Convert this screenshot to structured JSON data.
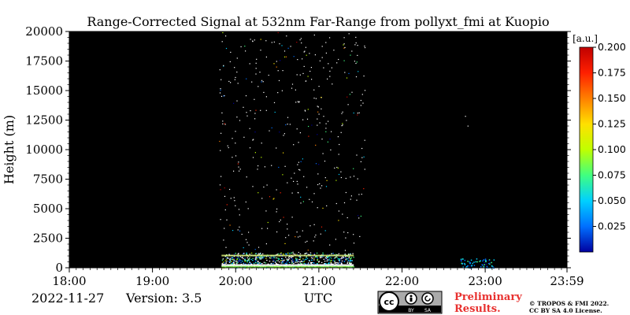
{
  "chart_data": {
    "type": "heatmap",
    "title": "Range-Corrected Signal at 532nm Far-Range from pollyxt_fmi at Kuopio",
    "xlabel": "UTC",
    "ylabel": "Height (m)",
    "x_ticks": [
      "18:00",
      "19:00",
      "20:00",
      "21:00",
      "22:00",
      "23:00",
      "23:59"
    ],
    "x_range_hours": [
      18.0,
      23.9833
    ],
    "y_ticks": [
      0,
      2500,
      5000,
      7500,
      10000,
      12500,
      15000,
      17500,
      20000
    ],
    "ylim": [
      0,
      20000
    ],
    "colorbar": {
      "unit": "[a.u.]",
      "ticks": [
        "0.025",
        "0.050",
        "0.075",
        "0.100",
        "0.125",
        "0.150",
        "0.175",
        "0.200"
      ],
      "range": [
        0.0,
        0.2
      ],
      "colormap": [
        "#0000a0",
        "#0070ff",
        "#00d0ff",
        "#40ff80",
        "#c0ff00",
        "#ffe000",
        "#ff8000",
        "#ff2000",
        "#c00000"
      ]
    },
    "background_color": "#000000",
    "signal_regions": [
      {
        "t_start": 19.83,
        "t_end": 21.42,
        "h_start": 0,
        "h_end": 1300,
        "intensity": "high"
      },
      {
        "t_start": 19.8,
        "t_end": 21.55,
        "h_start": 1300,
        "h_end": 20000,
        "intensity": "sparse noise"
      },
      {
        "t_start": 22.7,
        "t_end": 23.1,
        "h_start": 0,
        "h_end": 800,
        "intensity": "low"
      },
      {
        "t_start": 22.75,
        "t_end": 22.8,
        "h_start": 11500,
        "h_end": 15000,
        "intensity": "sparse noise"
      }
    ]
  },
  "footer": {
    "date": "2022-11-27",
    "version": "Version: 3.5",
    "utc_label": "UTC",
    "preliminary_line1": "Preliminary",
    "preliminary_line2": "Results.",
    "copyright_line1": "© TROPOS & FMI 2022.",
    "copyright_line2": "CC BY SA 4.0 License.",
    "license_badge": {
      "cc": "cc",
      "by": "BY",
      "sa": "SA"
    }
  },
  "colors": {
    "preliminary": "#e8312f",
    "axis": "#000000",
    "plot_bg": "#000000"
  }
}
